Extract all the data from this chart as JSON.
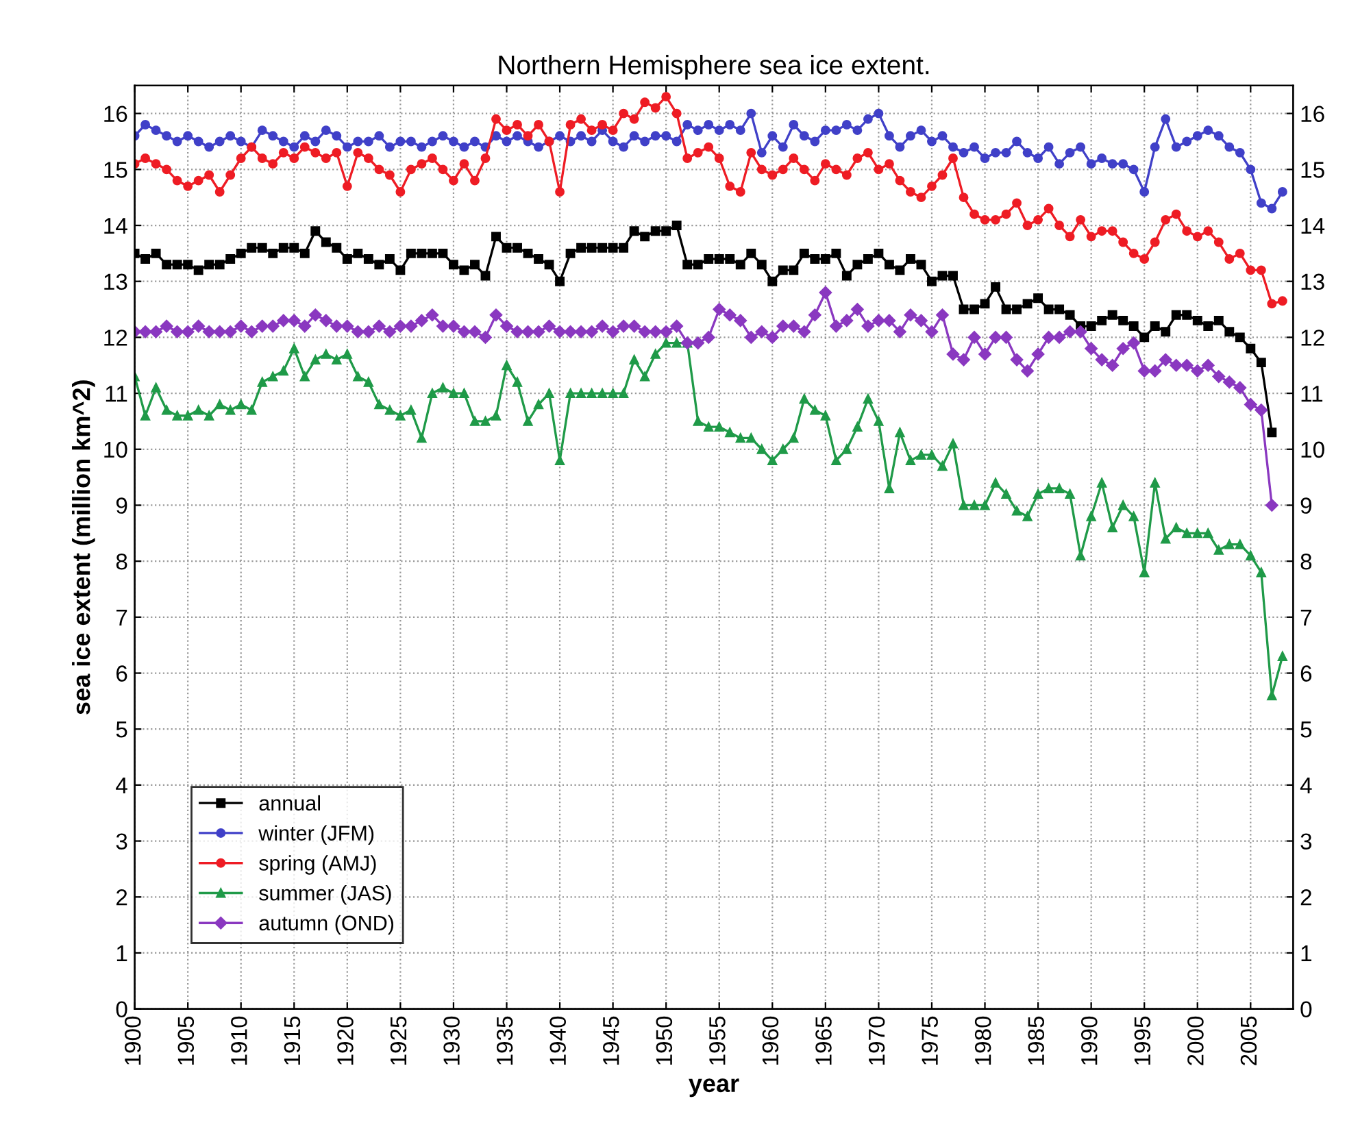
{
  "chart_data": {
    "type": "line",
    "title": "Northern Hemisphere sea ice extent.",
    "xlabel": "year",
    "ylabel": "sea ice extent (million km^2)",
    "x": [
      1900,
      1901,
      1902,
      1903,
      1904,
      1905,
      1906,
      1907,
      1908,
      1909,
      1910,
      1911,
      1912,
      1913,
      1914,
      1915,
      1916,
      1917,
      1918,
      1919,
      1920,
      1921,
      1922,
      1923,
      1924,
      1925,
      1926,
      1927,
      1928,
      1929,
      1930,
      1931,
      1932,
      1933,
      1934,
      1935,
      1936,
      1937,
      1938,
      1939,
      1940,
      1941,
      1942,
      1943,
      1944,
      1945,
      1946,
      1947,
      1948,
      1949,
      1950,
      1951,
      1952,
      1953,
      1954,
      1955,
      1956,
      1957,
      1958,
      1959,
      1960,
      1961,
      1962,
      1963,
      1964,
      1965,
      1966,
      1967,
      1968,
      1969,
      1970,
      1971,
      1972,
      1973,
      1974,
      1975,
      1976,
      1977,
      1978,
      1979,
      1980,
      1981,
      1982,
      1983,
      1984,
      1985,
      1986,
      1987,
      1988,
      1989,
      1990,
      1991,
      1992,
      1993,
      1994,
      1995,
      1996,
      1997,
      1998,
      1999,
      2000,
      2001,
      2002,
      2003,
      2004,
      2005,
      2006,
      2007,
      2008
    ],
    "series": [
      {
        "name": "annual",
        "color": "#000000",
        "marker": "square",
        "values": [
          13.5,
          13.4,
          13.5,
          13.3,
          13.3,
          13.3,
          13.2,
          13.3,
          13.3,
          13.4,
          13.5,
          13.6,
          13.6,
          13.5,
          13.6,
          13.6,
          13.5,
          13.9,
          13.7,
          13.6,
          13.4,
          13.5,
          13.4,
          13.3,
          13.4,
          13.2,
          13.5,
          13.5,
          13.5,
          13.5,
          13.3,
          13.2,
          13.3,
          13.1,
          13.8,
          13.6,
          13.6,
          13.5,
          13.4,
          13.3,
          13.0,
          13.5,
          13.6,
          13.6,
          13.6,
          13.6,
          13.6,
          13.9,
          13.8,
          13.9,
          13.9,
          14.0,
          13.3,
          13.3,
          13.4,
          13.4,
          13.4,
          13.3,
          13.5,
          13.3,
          13.0,
          13.2,
          13.2,
          13.5,
          13.4,
          13.4,
          13.5,
          13.1,
          13.3,
          13.4,
          13.5,
          13.3,
          13.2,
          13.4,
          13.3,
          13.0,
          13.1,
          13.1,
          12.5,
          12.5,
          12.6,
          12.9,
          12.5,
          12.5,
          12.6,
          12.7,
          12.5,
          12.5,
          12.4,
          12.2,
          12.2,
          12.3,
          12.4,
          12.3,
          12.2,
          12.0,
          12.2,
          12.1,
          12.4,
          12.4,
          12.3,
          12.2,
          12.3,
          12.1,
          12.0,
          11.8,
          11.55,
          10.3,
          null
        ]
      },
      {
        "name": "winter (JFM)",
        "color": "#4040c8",
        "marker": "circle",
        "values": [
          15.6,
          15.8,
          15.7,
          15.6,
          15.5,
          15.6,
          15.5,
          15.4,
          15.5,
          15.6,
          15.5,
          15.4,
          15.7,
          15.6,
          15.5,
          15.4,
          15.6,
          15.5,
          15.7,
          15.6,
          15.4,
          15.5,
          15.5,
          15.6,
          15.4,
          15.5,
          15.5,
          15.4,
          15.5,
          15.6,
          15.5,
          15.4,
          15.5,
          15.4,
          15.6,
          15.5,
          15.6,
          15.5,
          15.4,
          15.5,
          15.6,
          15.5,
          15.6,
          15.5,
          15.7,
          15.5,
          15.4,
          15.6,
          15.5,
          15.6,
          15.6,
          15.5,
          15.8,
          15.7,
          15.8,
          15.7,
          15.8,
          15.7,
          16.0,
          15.3,
          15.6,
          15.4,
          15.8,
          15.6,
          15.5,
          15.7,
          15.7,
          15.8,
          15.7,
          15.9,
          16.0,
          15.6,
          15.4,
          15.6,
          15.7,
          15.5,
          15.6,
          15.4,
          15.3,
          15.4,
          15.2,
          15.3,
          15.3,
          15.5,
          15.3,
          15.2,
          15.4,
          15.1,
          15.3,
          15.4,
          15.1,
          15.2,
          15.1,
          15.1,
          15.0,
          14.6,
          15.4,
          15.9,
          15.4,
          15.5,
          15.6,
          15.7,
          15.6,
          15.4,
          15.3,
          15.0,
          14.4,
          14.3,
          14.6
        ]
      },
      {
        "name": "spring (AMJ)",
        "color": "#ee1c24",
        "marker": "circle",
        "values": [
          15.1,
          15.2,
          15.1,
          15.0,
          14.8,
          14.7,
          14.8,
          14.9,
          14.6,
          14.9,
          15.2,
          15.4,
          15.2,
          15.1,
          15.3,
          15.2,
          15.4,
          15.3,
          15.2,
          15.3,
          14.7,
          15.3,
          15.2,
          15.0,
          14.9,
          14.6,
          15.0,
          15.1,
          15.2,
          15.0,
          14.8,
          15.1,
          14.8,
          15.2,
          15.9,
          15.7,
          15.8,
          15.6,
          15.8,
          15.5,
          14.6,
          15.8,
          15.9,
          15.7,
          15.8,
          15.7,
          16.0,
          15.9,
          16.2,
          16.1,
          16.3,
          16.0,
          15.2,
          15.3,
          15.4,
          15.2,
          14.7,
          14.6,
          15.3,
          15.0,
          14.9,
          15.0,
          15.2,
          15.0,
          14.8,
          15.1,
          15.0,
          14.9,
          15.2,
          15.3,
          15.0,
          15.1,
          14.8,
          14.6,
          14.5,
          14.7,
          14.9,
          15.2,
          14.5,
          14.2,
          14.1,
          14.1,
          14.2,
          14.4,
          14.0,
          14.1,
          14.3,
          14.0,
          13.8,
          14.1,
          13.8,
          13.9,
          13.9,
          13.7,
          13.5,
          13.4,
          13.7,
          14.1,
          14.2,
          13.9,
          13.8,
          13.9,
          13.7,
          13.4,
          13.5,
          13.2,
          13.2,
          12.6,
          12.65
        ]
      },
      {
        "name": "summer (JAS)",
        "color": "#1f9a48",
        "marker": "triangle",
        "values": [
          11.3,
          10.6,
          11.1,
          10.7,
          10.6,
          10.6,
          10.7,
          10.6,
          10.8,
          10.7,
          10.8,
          10.7,
          11.2,
          11.3,
          11.4,
          11.8,
          11.3,
          11.6,
          11.7,
          11.6,
          11.7,
          11.3,
          11.2,
          10.8,
          10.7,
          10.6,
          10.7,
          10.2,
          11.0,
          11.1,
          11.0,
          11.0,
          10.5,
          10.5,
          10.6,
          11.5,
          11.2,
          10.5,
          10.8,
          11.0,
          9.8,
          11.0,
          11.0,
          11.0,
          11.0,
          11.0,
          11.0,
          11.6,
          11.3,
          11.7,
          11.9,
          11.9,
          11.9,
          10.5,
          10.4,
          10.4,
          10.3,
          10.2,
          10.2,
          10.0,
          9.8,
          10.0,
          10.2,
          10.9,
          10.7,
          10.6,
          9.8,
          10.0,
          10.4,
          10.9,
          10.5,
          9.3,
          10.3,
          9.8,
          9.9,
          9.9,
          9.7,
          10.1,
          9.0,
          9.0,
          9.0,
          9.4,
          9.2,
          8.9,
          8.8,
          9.2,
          9.3,
          9.3,
          9.2,
          8.1,
          8.8,
          9.4,
          8.6,
          9.0,
          8.8,
          7.8,
          9.4,
          8.4,
          8.6,
          8.5,
          8.5,
          8.5,
          8.2,
          8.3,
          8.3,
          8.1,
          7.8,
          5.6,
          6.3
        ]
      },
      {
        "name": "autumn (OND)",
        "color": "#8a38c0",
        "marker": "diamond",
        "values": [
          12.1,
          12.1,
          12.1,
          12.2,
          12.1,
          12.1,
          12.2,
          12.1,
          12.1,
          12.1,
          12.2,
          12.1,
          12.2,
          12.2,
          12.3,
          12.3,
          12.2,
          12.4,
          12.3,
          12.2,
          12.2,
          12.1,
          12.1,
          12.2,
          12.1,
          12.2,
          12.2,
          12.3,
          12.4,
          12.2,
          12.2,
          12.1,
          12.1,
          12.0,
          12.4,
          12.2,
          12.1,
          12.1,
          12.1,
          12.2,
          12.1,
          12.1,
          12.1,
          12.1,
          12.2,
          12.1,
          12.2,
          12.2,
          12.1,
          12.1,
          12.1,
          12.2,
          11.9,
          11.9,
          12.0,
          12.5,
          12.4,
          12.3,
          12.0,
          12.1,
          12.0,
          12.2,
          12.2,
          12.1,
          12.4,
          12.8,
          12.2,
          12.3,
          12.5,
          12.2,
          12.3,
          12.3,
          12.1,
          12.4,
          12.3,
          12.1,
          12.4,
          11.7,
          11.6,
          12.0,
          11.7,
          12.0,
          12.0,
          11.6,
          11.4,
          11.7,
          12.0,
          12.0,
          12.1,
          12.1,
          11.8,
          11.6,
          11.5,
          11.8,
          11.9,
          11.4,
          11.4,
          11.6,
          11.5,
          11.5,
          11.4,
          11.5,
          11.3,
          11.2,
          11.1,
          10.8,
          10.7,
          9.0,
          null
        ]
      }
    ],
    "xlim": [
      1900,
      2009
    ],
    "xticks": [
      1900,
      1905,
      1910,
      1915,
      1920,
      1925,
      1930,
      1935,
      1940,
      1945,
      1950,
      1955,
      1960,
      1965,
      1970,
      1975,
      1980,
      1985,
      1990,
      1995,
      2000,
      2005
    ],
    "ylim": [
      0,
      16.5
    ],
    "yticks": [
      0,
      1,
      2,
      3,
      4,
      5,
      6,
      7,
      8,
      9,
      10,
      11,
      12,
      13,
      14,
      15,
      16
    ],
    "y2lim": [
      0,
      16.5
    ],
    "y2ticks": [
      0,
      1,
      2,
      3,
      4,
      5,
      6,
      7,
      8,
      9,
      10,
      11,
      12,
      13,
      14,
      15,
      16
    ],
    "grid": true,
    "legend": "bottom left",
    "line_style": "solid"
  }
}
